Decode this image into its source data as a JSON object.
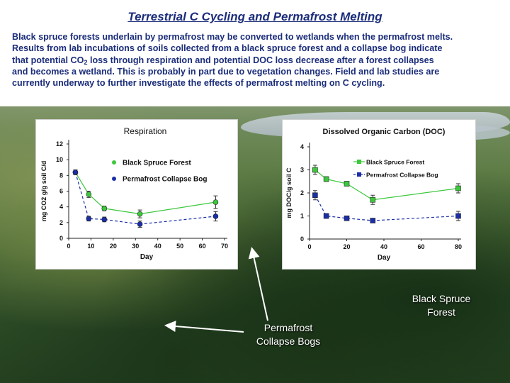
{
  "title": "Terrestrial C Cycling and Permafrost Melting",
  "paragraph": {
    "line1": "Black spruce forests underlain by permafrost may be converted to wetlands when the permafrost melts.",
    "line2": "Results from lab incubations of soils collected from a black spruce forest and a collapse bog indicate",
    "line3_pre": "that potential CO",
    "line3_sub": "2",
    "line3_post": " loss through respiration and potential DOC loss decrease after a forest collapses",
    "line4": "and becomes a wetland. This is probably in part due to vegetation changes. Field and lab studies are",
    "line5": "currently underway to further investigate the effects of permafrost melting on C cycling."
  },
  "annotations": {
    "black_spruce_line1": "Black Spruce",
    "black_spruce_line2": "Forest",
    "collapse_bogs_line1": "Permafrost",
    "collapse_bogs_line2": "Collapse Bogs"
  },
  "colors": {
    "title_text": "#1b2d7a",
    "forest_series": "#3cc83c",
    "bog_series": "#1a2ea8"
  },
  "chart_data": [
    {
      "type": "line",
      "title": "Respiration",
      "xlabel": "Day",
      "ylabel": "mg CO2 g/g soil C/d",
      "xlim": [
        0,
        70
      ],
      "ylim": [
        0,
        12
      ],
      "xticks": [
        0,
        10,
        20,
        30,
        40,
        50,
        60,
        70
      ],
      "yticks": [
        0,
        2,
        4,
        6,
        8,
        10,
        12
      ],
      "legend_position": "right",
      "series": [
        {
          "name": "Black Spruce Forest",
          "color": "#3cc83c",
          "marker": "circle",
          "line": "solid",
          "x": [
            3,
            9,
            16,
            32,
            66
          ],
          "y": [
            8.4,
            5.6,
            3.8,
            3.1,
            4.6
          ],
          "err": [
            0.3,
            0.4,
            0.3,
            0.5,
            0.8
          ]
        },
        {
          "name": "Permafrost Collapse Bog",
          "color": "#1a2ea8",
          "marker": "circle",
          "line": "dashed",
          "x": [
            3,
            9,
            16,
            32,
            66
          ],
          "y": [
            8.4,
            2.5,
            2.4,
            1.8,
            2.8
          ],
          "err": [
            0.3,
            0.3,
            0.3,
            0.4,
            0.6
          ]
        }
      ]
    },
    {
      "type": "line",
      "title": "Dissolved Organic Carbon (DOC)",
      "xlabel": "Day",
      "ylabel": "mg DOC/g soil C",
      "xlim": [
        0,
        80
      ],
      "ylim": [
        0,
        4
      ],
      "xticks": [
        0,
        20,
        40,
        60,
        80
      ],
      "yticks": [
        0,
        1,
        2,
        3,
        4
      ],
      "legend_position": "right",
      "series": [
        {
          "name": "Black Spruce Forest",
          "color": "#3cc83c",
          "marker": "square",
          "line": "solid",
          "x": [
            3,
            9,
            20,
            34,
            80
          ],
          "y": [
            3.0,
            2.6,
            2.4,
            1.7,
            2.2
          ],
          "err": [
            0.2,
            0.1,
            0.1,
            0.2,
            0.2
          ]
        },
        {
          "name": "Permafrost Collapse Bog",
          "color": "#1a2ea8",
          "marker": "square",
          "line": "dashed",
          "x": [
            3,
            9,
            20,
            34,
            80
          ],
          "y": [
            1.9,
            1.0,
            0.9,
            0.8,
            1.0
          ],
          "err": [
            0.2,
            0.1,
            0.05,
            0.05,
            0.2
          ]
        }
      ]
    }
  ]
}
